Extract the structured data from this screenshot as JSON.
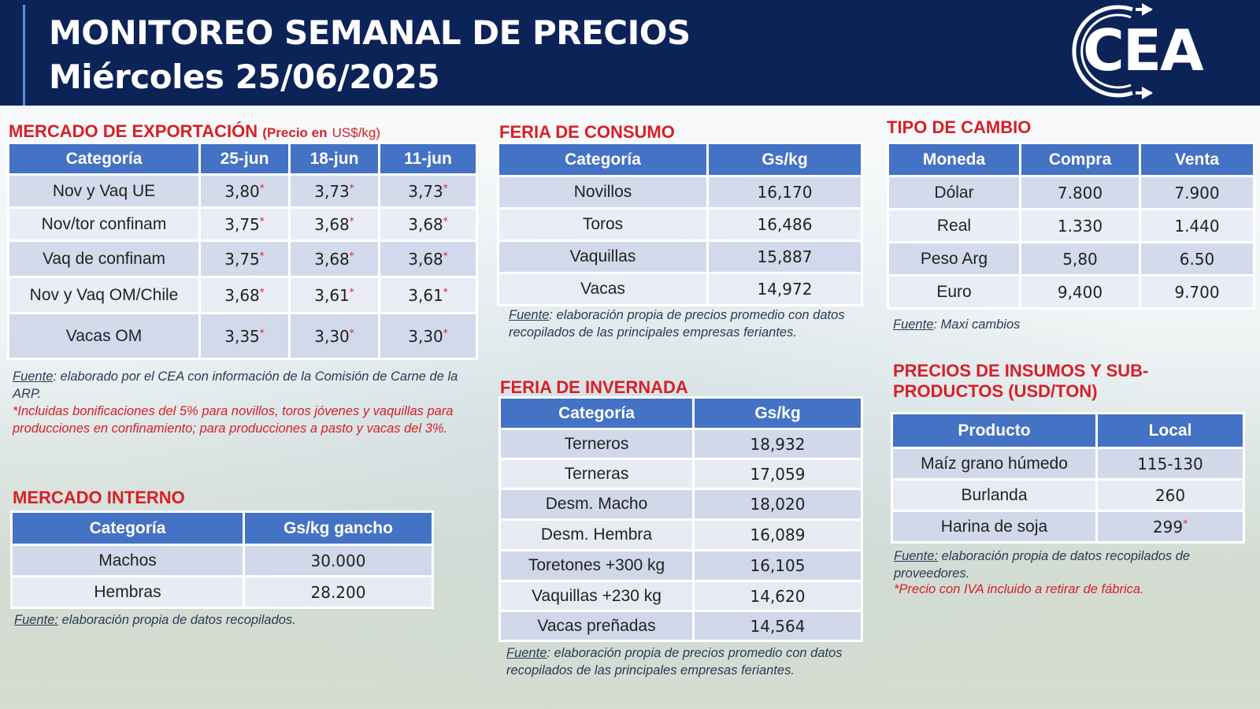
{
  "header": {
    "title": "MONITOREO SEMANAL DE PRECIOS",
    "date": "Miércoles 25/06/2025",
    "logo_text": "CEA"
  },
  "export_market": {
    "title": "MERCADO DE EXPORTACIÓN",
    "subtitle_bold": "(Precio en",
    "subtitle_unit": "US$/kg)",
    "columns": [
      "Categoría",
      "25-jun",
      "18-jun",
      "11-jun"
    ],
    "rows": [
      {
        "cat": "Nov y Vaq UE",
        "v": [
          "3,80",
          "3,73",
          "3,73"
        ]
      },
      {
        "cat": "Nov/tor confinam",
        "v": [
          "3,75",
          "3,68",
          "3,68"
        ]
      },
      {
        "cat": "Vaq de confinam",
        "v": [
          "3,75",
          "3,68",
          "3,68"
        ]
      },
      {
        "cat": "Nov y Vaq OM/Chile",
        "v": [
          "3,68",
          "3,61",
          "3,61"
        ]
      },
      {
        "cat": "Vacas OM",
        "v": [
          "3,35",
          "3,30",
          "3,30"
        ]
      }
    ],
    "star": "*",
    "source_label": "Fuente",
    "source_text": ": elaborado por el CEA con información de la Comisión de Carne de la ARP.",
    "footnote": "*Incluidas bonificaciones del 5% para novillos, toros jóvenes y vaquillas para producciones en confinamiento; para producciones a pasto y vacas del 3%."
  },
  "internal_market": {
    "title": "MERCADO INTERNO",
    "columns": [
      "Categoría",
      "Gs/kg gancho"
    ],
    "rows": [
      {
        "cat": "Machos",
        "v": "30.000"
      },
      {
        "cat": "Hembras",
        "v": "28.200"
      }
    ],
    "source_label": "Fuente:",
    "source_text": " elaboración propia de datos recopilados."
  },
  "consumo": {
    "title": "FERIA DE CONSUMO",
    "columns": [
      "Categoría",
      "Gs/kg"
    ],
    "rows": [
      {
        "cat": "Novillos",
        "v": "16,170"
      },
      {
        "cat": "Toros",
        "v": "16,486"
      },
      {
        "cat": "Vaquillas",
        "v": "15,887"
      },
      {
        "cat": "Vacas",
        "v": "14,972"
      }
    ],
    "source_label": "Fuente",
    "source_text": ": elaboración propia de precios promedio con datos recopilados de las principales empresas feriantes."
  },
  "invernada": {
    "title": "FERIA DE INVERNADA",
    "columns": [
      "Categoría",
      "Gs/kg"
    ],
    "rows": [
      {
        "cat": "Terneros",
        "v": "18,932"
      },
      {
        "cat": "Terneras",
        "v": "17,059"
      },
      {
        "cat": "Desm. Macho",
        "v": "18,020"
      },
      {
        "cat": "Desm. Hembra",
        "v": "16,089"
      },
      {
        "cat": "Toretones +300 kg",
        "v": "16,105"
      },
      {
        "cat": "Vaquillas +230 kg",
        "v": "14,620"
      },
      {
        "cat": "Vacas preñadas",
        "v": "14,564"
      }
    ],
    "source_label": "Fuente",
    "source_text": ": elaboración propia de precios promedio con datos recopilados de las principales empresas feriantes."
  },
  "exchange": {
    "title": "TIPO DE CAMBIO",
    "columns": [
      "Moneda",
      "Compra",
      "Venta"
    ],
    "rows": [
      {
        "cat": "Dólar",
        "buy": "7.800",
        "sell": "7.900"
      },
      {
        "cat": "Real",
        "buy": "1.330",
        "sell": "1.440"
      },
      {
        "cat": "Peso Arg",
        "buy": "5,80",
        "sell": "6.50"
      },
      {
        "cat": "Euro",
        "buy": "9,400",
        "sell": "9.700"
      }
    ],
    "source_label": "Fuente",
    "source_text": ": Maxi cambios"
  },
  "inputs": {
    "title_line1": "PRECIOS DE INSUMOS Y SUB-",
    "title_line2": "PRODUCTOS (USD/TON)",
    "columns": [
      "Producto",
      "Local"
    ],
    "rows": [
      {
        "cat": "Maíz grano húmedo",
        "v": "115-130",
        "star": ""
      },
      {
        "cat": "Burlanda",
        "v": "260",
        "star": ""
      },
      {
        "cat": "Harina de soja",
        "v": "299",
        "star": "*"
      }
    ],
    "source_label": "Fuente:",
    "source_text": " elaboración propia de datos recopilados de proveedores.",
    "footnote": "*Precio con IVA incluido a retirar de fábrica."
  },
  "colors": {
    "header_bg": "#0c2358",
    "table_header": "#4472c4",
    "section_title": "#d81f26",
    "row_odd": "#cfd7ea",
    "row_even": "#e9ecf5"
  }
}
